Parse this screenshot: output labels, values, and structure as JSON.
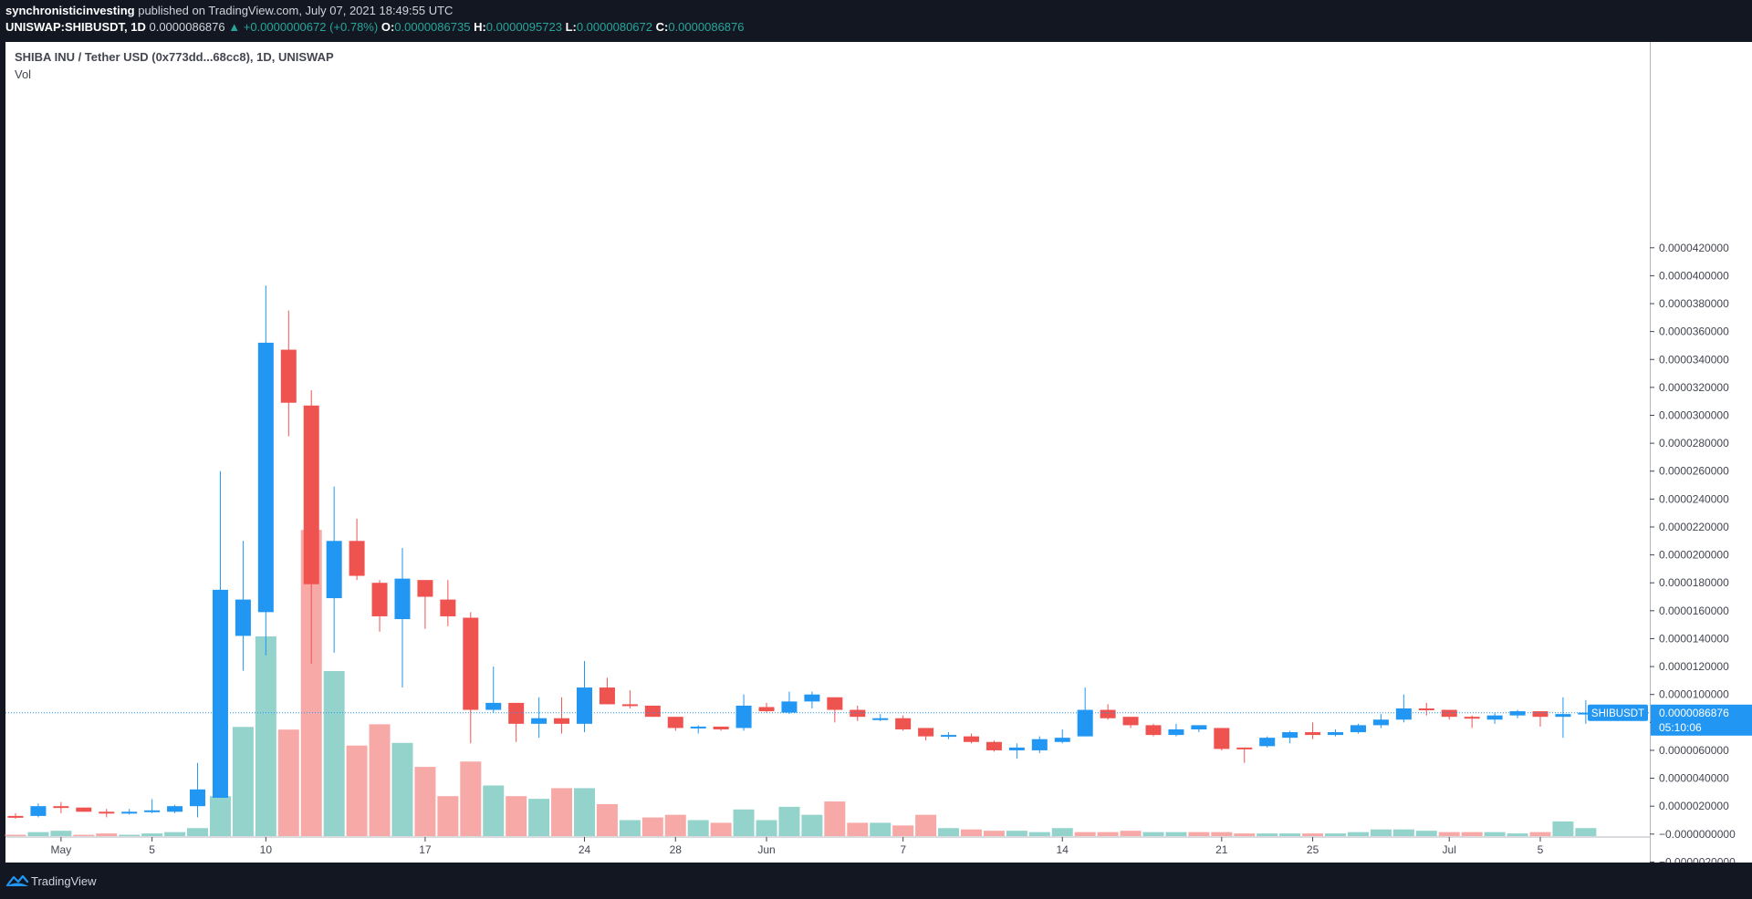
{
  "header": {
    "author": "synchronisticinvesting",
    "published_text": "published on TradingView.com, July 07, 2021 18:49:55 UTC",
    "symbol": "UNISWAP:SHIBUSDT, 1D",
    "last_price": "0.0000086876",
    "change": "▲ +0.0000000672 (+0.78%)",
    "o_label": "O:",
    "o_value": "0.0000086735",
    "h_label": "H:",
    "h_value": "0.0000095723",
    "l_label": "L:",
    "l_value": "0.0000080672",
    "c_label": "C:",
    "c_value": "0.0000086876"
  },
  "chart_title": "SHIBA INU / Tether USD (0x773dd...68cc8), 1D, UNISWAP",
  "vol_label": "Vol",
  "footer": {
    "brand": "TradingView"
  },
  "colors": {
    "up": "#2196f3",
    "down": "#ef5350",
    "vol_up": "#94d3cc",
    "vol_down": "#f7a9a7",
    "last_price_badge": "#2196f3"
  },
  "chart_data": {
    "type": "candlestick",
    "y_ticks": [
      "0.0000420000",
      "0.0000400000",
      "0.0000380000",
      "0.0000360000",
      "0.0000340000",
      "0.0000320000",
      "0.0000300000",
      "0.0000280000",
      "0.0000260000",
      "0.0000240000",
      "0.0000220000",
      "0.0000200000",
      "0.0000180000",
      "0.0000160000",
      "0.0000140000",
      "0.0000120000",
      "0.0000100000",
      "0.0000080000",
      "0.0000060000",
      "0.0000040000",
      "0.0000020000",
      "−0.0000000000",
      "−0.0000020000"
    ],
    "y_tick_values": [
      42,
      40,
      38,
      36,
      34,
      32,
      30,
      28,
      26,
      24,
      22,
      20,
      18,
      16,
      14,
      12,
      10,
      8,
      6,
      4,
      2,
      0,
      -2
    ],
    "y_units": "×1e-6 USD",
    "ylim": [
      -2.3,
      45
    ],
    "x_ticks": [
      {
        "label": "May",
        "index": 2
      },
      {
        "label": "5",
        "index": 6
      },
      {
        "label": "10",
        "index": 11
      },
      {
        "label": "17",
        "index": 18
      },
      {
        "label": "24",
        "index": 25
      },
      {
        "label": "28",
        "index": 29
      },
      {
        "label": "Jun",
        "index": 33
      },
      {
        "label": "7",
        "index": 39
      },
      {
        "label": "14",
        "index": 46
      },
      {
        "label": "21",
        "index": 53
      },
      {
        "label": "25",
        "index": 57
      },
      {
        "label": "Jul",
        "index": 63
      },
      {
        "label": "5",
        "index": 67
      }
    ],
    "last_price_label": "SHIBUSDT",
    "last_price_value": "0.0000086876",
    "last_price_numeric": 8.6876,
    "countdown": "05:10:06",
    "candles": [
      [
        1.3,
        1.5,
        1.1,
        1.2
      ],
      [
        1.3,
        2.2,
        1.2,
        2.0
      ],
      [
        2.0,
        2.3,
        1.5,
        1.9
      ],
      [
        1.9,
        1.9,
        1.6,
        1.6
      ],
      [
        1.6,
        1.8,
        1.2,
        1.5
      ],
      [
        1.5,
        1.8,
        1.4,
        1.6
      ],
      [
        1.6,
        2.5,
        1.5,
        1.7
      ],
      [
        1.6,
        2.1,
        1.5,
        2.0
      ],
      [
        2.0,
        5.1,
        1.2,
        3.2
      ],
      [
        2.6,
        26.0,
        2.6,
        17.5
      ],
      [
        14.2,
        21.0,
        11.7,
        16.8
      ],
      [
        15.9,
        39.3,
        12.8,
        35.2
      ],
      [
        34.7,
        37.5,
        28.5,
        30.9
      ],
      [
        30.7,
        31.8,
        12.2,
        17.9
      ],
      [
        16.9,
        24.9,
        13.0,
        21.0
      ],
      [
        21.0,
        22.6,
        18.2,
        18.5
      ],
      [
        18.0,
        18.2,
        14.5,
        15.6
      ],
      [
        15.4,
        20.5,
        10.5,
        18.3
      ],
      [
        18.2,
        18.2,
        14.7,
        17.0
      ],
      [
        16.8,
        18.2,
        14.9,
        15.6
      ],
      [
        15.5,
        15.9,
        6.5,
        8.9
      ],
      [
        8.9,
        12.0,
        8.7,
        9.4
      ],
      [
        9.4,
        9.4,
        6.6,
        7.9
      ],
      [
        7.9,
        9.8,
        6.9,
        8.3
      ],
      [
        8.3,
        9.8,
        7.2,
        7.9
      ],
      [
        7.9,
        12.4,
        7.3,
        10.5
      ],
      [
        10.5,
        11.2,
        9.3,
        9.3
      ],
      [
        9.3,
        10.3,
        9.0,
        9.2
      ],
      [
        9.2,
        9.2,
        8.4,
        8.4
      ],
      [
        8.4,
        8.4,
        7.4,
        7.6
      ],
      [
        7.7,
        7.8,
        7.2,
        7.7
      ],
      [
        7.7,
        7.7,
        7.4,
        7.5
      ],
      [
        7.6,
        10.0,
        7.4,
        9.2
      ],
      [
        9.1,
        9.4,
        8.7,
        8.8
      ],
      [
        8.7,
        10.2,
        8.6,
        9.5
      ],
      [
        9.5,
        10.2,
        9.0,
        10.0
      ],
      [
        9.8,
        9.8,
        8.0,
        8.9
      ],
      [
        8.9,
        9.2,
        8.1,
        8.4
      ],
      [
        8.3,
        8.6,
        8.1,
        8.3
      ],
      [
        8.3,
        8.5,
        7.4,
        7.5
      ],
      [
        7.6,
        7.6,
        6.7,
        7.0
      ],
      [
        7.0,
        7.3,
        6.8,
        7.1
      ],
      [
        7.0,
        7.2,
        6.5,
        6.6
      ],
      [
        6.6,
        6.7,
        5.9,
        6.0
      ],
      [
        6.0,
        6.5,
        5.4,
        6.2
      ],
      [
        6.0,
        7.0,
        5.8,
        6.8
      ],
      [
        6.6,
        7.5,
        6.5,
        6.9
      ],
      [
        7.0,
        10.5,
        7.0,
        8.9
      ],
      [
        8.9,
        9.3,
        8.2,
        8.3
      ],
      [
        8.4,
        8.4,
        7.6,
        7.8
      ],
      [
        7.8,
        7.9,
        7.0,
        7.1
      ],
      [
        7.1,
        7.9,
        7.0,
        7.5
      ],
      [
        7.5,
        7.8,
        7.3,
        7.8
      ],
      [
        7.6,
        7.6,
        6.0,
        6.1
      ],
      [
        6.2,
        6.2,
        5.1,
        6.1
      ],
      [
        6.3,
        7.0,
        6.2,
        6.9
      ],
      [
        6.9,
        7.4,
        6.5,
        7.3
      ],
      [
        7.3,
        8.0,
        6.8,
        7.1
      ],
      [
        7.1,
        7.5,
        7.0,
        7.3
      ],
      [
        7.3,
        7.9,
        7.2,
        7.8
      ],
      [
        7.8,
        8.6,
        7.6,
        8.2
      ],
      [
        8.2,
        10.0,
        8.0,
        9.0
      ],
      [
        9.0,
        9.4,
        8.5,
        8.9
      ],
      [
        8.9,
        8.9,
        8.2,
        8.4
      ],
      [
        8.4,
        8.5,
        7.6,
        8.3
      ],
      [
        8.2,
        8.7,
        7.9,
        8.5
      ],
      [
        8.5,
        8.9,
        8.3,
        8.8
      ],
      [
        8.8,
        8.8,
        7.7,
        8.4
      ],
      [
        8.4,
        9.8,
        6.9,
        8.6
      ],
      [
        8.6,
        9.6,
        7.9,
        8.7
      ]
    ],
    "volume": [
      [
        0.05,
        0
      ],
      [
        0.15,
        1
      ],
      [
        0.2,
        1
      ],
      [
        0.05,
        0
      ],
      [
        0.1,
        0
      ],
      [
        0.05,
        1
      ],
      [
        0.1,
        1
      ],
      [
        0.15,
        1
      ],
      [
        0.3,
        1
      ],
      [
        1.5,
        1
      ],
      [
        4.1,
        1
      ],
      [
        7.5,
        1
      ],
      [
        4.0,
        0
      ],
      [
        11.5,
        0
      ],
      [
        6.2,
        1
      ],
      [
        3.4,
        0
      ],
      [
        4.2,
        0
      ],
      [
        3.5,
        1
      ],
      [
        2.6,
        0
      ],
      [
        1.5,
        0
      ],
      [
        2.8,
        0
      ],
      [
        1.9,
        1
      ],
      [
        1.5,
        0
      ],
      [
        1.4,
        1
      ],
      [
        1.8,
        0
      ],
      [
        1.8,
        1
      ],
      [
        1.2,
        0
      ],
      [
        0.6,
        1
      ],
      [
        0.7,
        0
      ],
      [
        0.8,
        0
      ],
      [
        0.6,
        1
      ],
      [
        0.5,
        0
      ],
      [
        1.0,
        1
      ],
      [
        0.6,
        1
      ],
      [
        1.1,
        1
      ],
      [
        0.8,
        1
      ],
      [
        1.3,
        0
      ],
      [
        0.5,
        0
      ],
      [
        0.5,
        1
      ],
      [
        0.4,
        0
      ],
      [
        0.8,
        0
      ],
      [
        0.3,
        1
      ],
      [
        0.25,
        0
      ],
      [
        0.2,
        0
      ],
      [
        0.2,
        1
      ],
      [
        0.15,
        1
      ],
      [
        0.3,
        1
      ],
      [
        0.15,
        0
      ],
      [
        0.15,
        0
      ],
      [
        0.2,
        0
      ],
      [
        0.15,
        1
      ],
      [
        0.15,
        1
      ],
      [
        0.15,
        0
      ],
      [
        0.15,
        0
      ],
      [
        0.1,
        0
      ],
      [
        0.1,
        1
      ],
      [
        0.1,
        1
      ],
      [
        0.1,
        0
      ],
      [
        0.1,
        1
      ],
      [
        0.15,
        1
      ],
      [
        0.25,
        1
      ],
      [
        0.25,
        1
      ],
      [
        0.2,
        1
      ],
      [
        0.15,
        0
      ],
      [
        0.15,
        0
      ],
      [
        0.15,
        1
      ],
      [
        0.1,
        1
      ],
      [
        0.15,
        0
      ],
      [
        0.55,
        1
      ],
      [
        0.3,
        1
      ]
    ]
  }
}
